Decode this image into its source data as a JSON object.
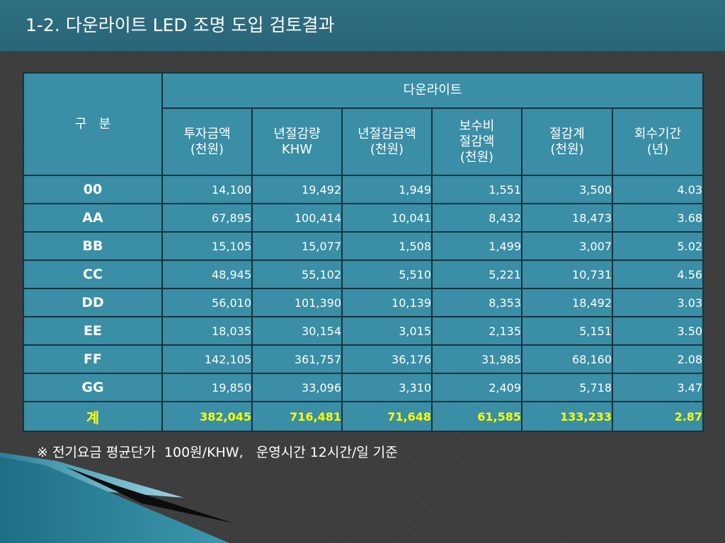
{
  "slide": {
    "title": "1-2. 다운라이트 LED 조명 도입 검토결과"
  },
  "table": {
    "category_header": "구   분",
    "group_header": "다운라이트",
    "columns": [
      "투자금액\n(천원)",
      "년절감량\nKHW",
      "년절감금액\n(천원)",
      "보수비\n절감액\n(천원)",
      "절감계\n(천원)",
      "회수기간\n(년)"
    ],
    "rows": [
      {
        "label": "00",
        "values": [
          "14,100",
          "19,492",
          "1,949",
          "1,551",
          "3,500",
          "4.03"
        ]
      },
      {
        "label": "AA",
        "values": [
          "67,895",
          "100,414",
          "10,041",
          "8,432",
          "18,473",
          "3.68"
        ]
      },
      {
        "label": "BB",
        "values": [
          "15,105",
          "15,077",
          "1,508",
          "1,499",
          "3,007",
          "5.02"
        ]
      },
      {
        "label": "CC",
        "values": [
          "48,945",
          "55,102",
          "5,510",
          "5,221",
          "10,731",
          "4.56"
        ]
      },
      {
        "label": "DD",
        "values": [
          "56,010",
          "101,390",
          "10,139",
          "8,353",
          "18,492",
          "3.03"
        ]
      },
      {
        "label": "EE",
        "values": [
          "18,035",
          "30,154",
          "3,015",
          "2,135",
          "5,151",
          "3.50"
        ]
      },
      {
        "label": "FF",
        "values": [
          "142,105",
          "361,757",
          "36,176",
          "31,985",
          "68,160",
          "2.08"
        ]
      },
      {
        "label": "GG",
        "values": [
          "19,850",
          "33,096",
          "3,310",
          "2,409",
          "5,718",
          "3.47"
        ]
      }
    ],
    "total": {
      "label": "계",
      "values": [
        "382,045",
        "716,481",
        "71,648",
        "61,585",
        "133,233",
        "2.87"
      ]
    }
  },
  "footnote": "※ 전기요금 평균단가  100원/KHW,   운영시간 12시간/일 기준",
  "colors": {
    "title_bar": "#2f6f82",
    "table_fill": "#3a8ea6",
    "table_border": "#16343d",
    "total_text": "#ffff00",
    "background": "#3a3a3a"
  }
}
